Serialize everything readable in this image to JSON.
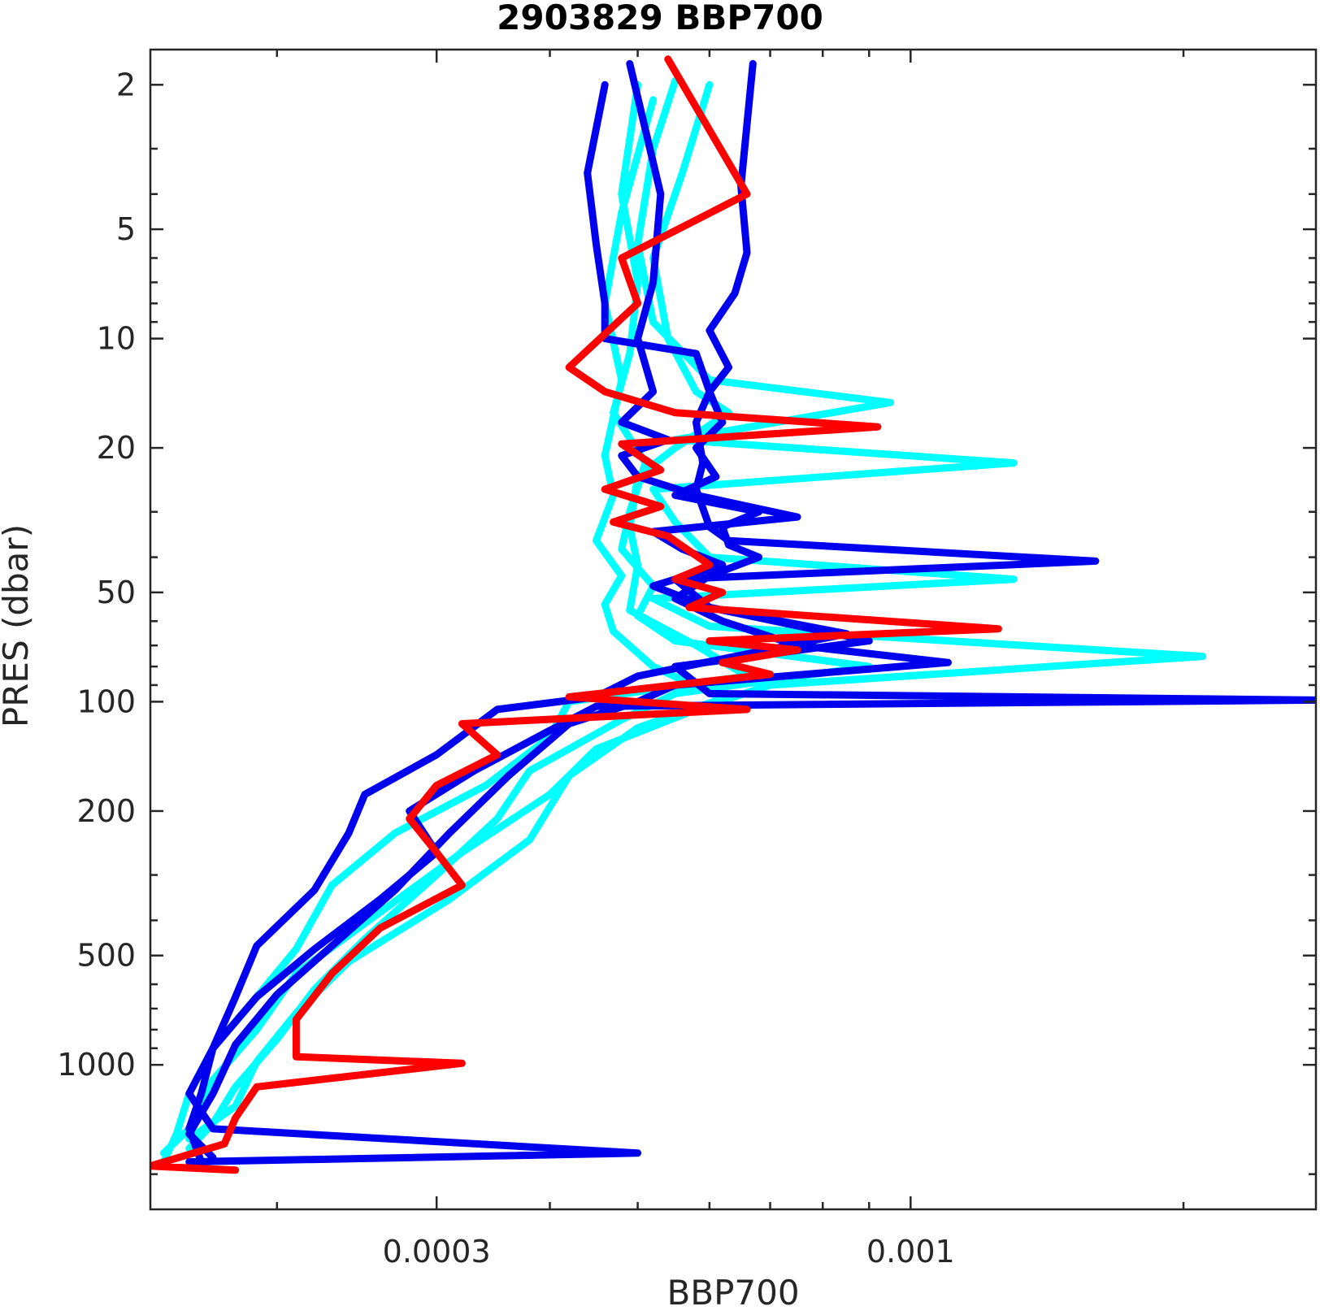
{
  "chart_data": {
    "type": "line",
    "title": "2903829 BBP700",
    "xlabel": "BBP700",
    "ylabel": "PRES (dbar)",
    "x_scale": "log",
    "y_scale": "log",
    "y_reversed": true,
    "xlim": [
      0.000145,
      0.0028
    ],
    "ylim": [
      2500,
      1.6
    ],
    "x_ticks": [
      {
        "value": 0.0003,
        "label": "0.0003"
      },
      {
        "value": 0.001,
        "label": "0.001"
      }
    ],
    "x_minor_ticks": [
      0.0002,
      0.0004,
      0.0005,
      0.0006,
      0.0007,
      0.0008,
      0.0009,
      0.002
    ],
    "y_ticks": [
      {
        "value": 2,
        "label": "2"
      },
      {
        "value": 5,
        "label": "5"
      },
      {
        "value": 10,
        "label": "10"
      },
      {
        "value": 20,
        "label": "20"
      },
      {
        "value": 50,
        "label": "50"
      },
      {
        "value": 100,
        "label": "100"
      },
      {
        "value": 200,
        "label": "200"
      },
      {
        "value": 500,
        "label": "500"
      },
      {
        "value": 1000,
        "label": "1000"
      }
    ],
    "y_minor_ticks": [
      3,
      4,
      6,
      7,
      8,
      9,
      30,
      40,
      60,
      70,
      80,
      90,
      300,
      400,
      600,
      700,
      800,
      900,
      2000
    ],
    "colors": {
      "older": "#00FFFF",
      "mid": "#0000EE",
      "latest": "#FF0000"
    },
    "series": [
      {
        "color": "#00FFFF",
        "points": [
          [
            0.0006,
            2.0
          ],
          [
            0.00056,
            3.5
          ],
          [
            0.00052,
            6
          ],
          [
            0.00054,
            10
          ],
          [
            0.00058,
            14
          ],
          [
            0.00063,
            16
          ],
          [
            0.00055,
            20
          ],
          [
            0.0005,
            24
          ],
          [
            0.00049,
            33
          ],
          [
            0.0005,
            42
          ],
          [
            0.00049,
            56
          ],
          [
            0.00058,
            70
          ],
          [
            0.00066,
            85
          ],
          [
            0.00042,
            100
          ],
          [
            0.0004,
            125
          ],
          [
            0.00034,
            170
          ],
          [
            0.00027,
            230
          ],
          [
            0.00023,
            320
          ],
          [
            0.00021,
            480
          ],
          [
            0.00019,
            650
          ],
          [
            0.00017,
            900
          ],
          [
            0.00016,
            1200
          ],
          [
            0.000155,
            1550
          ],
          [
            0.00015,
            1850
          ]
        ]
      },
      {
        "color": "#00FFFF",
        "points": [
          [
            0.00055,
            1.95
          ],
          [
            0.00052,
            3.0
          ],
          [
            0.0005,
            5.5
          ],
          [
            0.00052,
            9
          ],
          [
            0.0006,
            13
          ],
          [
            0.00095,
            15
          ],
          [
            0.00055,
            19
          ],
          [
            0.0013,
            22
          ],
          [
            0.00052,
            26
          ],
          [
            0.00055,
            32
          ],
          [
            0.0006,
            40
          ],
          [
            0.0013,
            46
          ],
          [
            0.00052,
            52
          ],
          [
            0.0006,
            62
          ],
          [
            0.0021,
            75
          ],
          [
            0.0007,
            90
          ],
          [
            0.00058,
            105
          ],
          [
            0.00045,
            135
          ],
          [
            0.0004,
            180
          ],
          [
            0.00032,
            260
          ],
          [
            0.00026,
            380
          ],
          [
            0.00021,
            560
          ],
          [
            0.00019,
            800
          ],
          [
            0.00017,
            1100
          ],
          [
            0.00016,
            1500
          ],
          [
            0.00015,
            1750
          ]
        ]
      },
      {
        "color": "#00FFFF",
        "points": [
          [
            0.0005,
            2.0
          ],
          [
            0.00048,
            4.0
          ],
          [
            0.0005,
            7
          ],
          [
            0.00049,
            11
          ],
          [
            0.00047,
            16
          ],
          [
            0.00051,
            22
          ],
          [
            0.00049,
            30
          ],
          [
            0.00048,
            38
          ],
          [
            0.00052,
            48
          ],
          [
            0.0005,
            58
          ],
          [
            0.00055,
            68
          ],
          [
            0.0009,
            80
          ],
          [
            0.00055,
            95
          ],
          [
            0.00048,
            112
          ],
          [
            0.00038,
            155
          ],
          [
            0.00035,
            210
          ],
          [
            0.0003,
            300
          ],
          [
            0.00025,
            450
          ],
          [
            0.00022,
            620
          ],
          [
            0.0002,
            850
          ],
          [
            0.00018,
            1150
          ],
          [
            0.00017,
            1450
          ],
          [
            0.00016,
            1700
          ]
        ]
      },
      {
        "color": "#00FFFF",
        "points": [
          [
            0.00052,
            2.2
          ],
          [
            0.00048,
            4.5
          ],
          [
            0.00046,
            8
          ],
          [
            0.00048,
            13
          ],
          [
            0.00046,
            21
          ],
          [
            0.00047,
            27
          ],
          [
            0.00045,
            36
          ],
          [
            0.00048,
            45
          ],
          [
            0.00046,
            54
          ],
          [
            0.00047,
            64
          ],
          [
            0.00052,
            80
          ],
          [
            0.00062,
            98
          ],
          [
            0.0005,
            118
          ],
          [
            0.00042,
            160
          ],
          [
            0.00038,
            240
          ],
          [
            0.00031,
            350
          ],
          [
            0.00024,
            520
          ],
          [
            0.00021,
            720
          ],
          [
            0.00019,
            980
          ],
          [
            0.00018,
            1300
          ],
          [
            0.00016,
            1600
          ]
        ]
      },
      {
        "color": "#0000EE",
        "points": [
          [
            0.00049,
            1.75
          ],
          [
            0.00053,
            4.0
          ],
          [
            0.00052,
            7
          ],
          [
            0.0005,
            10
          ],
          [
            0.00052,
            14
          ],
          [
            0.00048,
            17
          ],
          [
            0.00054,
            19
          ],
          [
            0.00048,
            21
          ],
          [
            0.0005,
            24
          ],
          [
            0.00058,
            27
          ],
          [
            0.00075,
            31
          ],
          [
            0.00052,
            34
          ],
          [
            0.00056,
            38
          ],
          [
            0.00062,
            42
          ],
          [
            0.00052,
            48
          ],
          [
            0.0006,
            55
          ],
          [
            0.0009,
            68
          ],
          [
            0.00055,
            80
          ],
          [
            0.0006,
            95
          ],
          [
            0.0028,
            99
          ],
          [
            0.00045,
            103
          ],
          [
            0.0004,
            120
          ],
          [
            0.00033,
            155
          ],
          [
            0.00028,
            200
          ],
          [
            0.0003,
            260
          ],
          [
            0.00026,
            350
          ],
          [
            0.00022,
            480
          ],
          [
            0.00019,
            650
          ],
          [
            0.00017,
            900
          ],
          [
            0.000165,
            1200
          ],
          [
            0.00016,
            1500
          ],
          [
            0.000165,
            1850
          ]
        ]
      },
      {
        "color": "#0000EE",
        "points": [
          [
            0.00067,
            1.75
          ],
          [
            0.00065,
            3.8
          ],
          [
            0.00066,
            5.8
          ],
          [
            0.00064,
            7.5
          ],
          [
            0.0006,
            9.5
          ],
          [
            0.00063,
            12
          ],
          [
            0.0006,
            14
          ],
          [
            0.00062,
            17
          ],
          [
            0.00058,
            20
          ],
          [
            0.00061,
            24
          ],
          [
            0.00055,
            27
          ],
          [
            0.00068,
            30
          ],
          [
            0.00062,
            33
          ],
          [
            0.00063,
            37
          ],
          [
            0.00068,
            40
          ],
          [
            0.0006,
            45
          ],
          [
            0.00055,
            52
          ],
          [
            0.00062,
            60
          ],
          [
            0.00075,
            70
          ],
          [
            0.0011,
            78
          ],
          [
            0.00055,
            90
          ],
          [
            0.0005,
            100
          ],
          [
            0.00042,
            115
          ],
          [
            0.00036,
            160
          ],
          [
            0.00031,
            230
          ],
          [
            0.00027,
            330
          ],
          [
            0.00023,
            470
          ],
          [
            0.0002,
            640
          ],
          [
            0.00018,
            880
          ],
          [
            0.00017,
            1200
          ],
          [
            0.00016,
            1550
          ],
          [
            0.00017,
            1800
          ]
        ]
      },
      {
        "color": "#0000EE",
        "points": [
          [
            0.00046,
            2.0
          ],
          [
            0.00044,
            3.5
          ],
          [
            0.00045,
            5.5
          ],
          [
            0.00046,
            8
          ],
          [
            0.00046,
            10
          ],
          [
            0.00058,
            11
          ],
          [
            0.0006,
            14
          ],
          [
            0.00058,
            17
          ],
          [
            0.00059,
            22
          ],
          [
            0.00058,
            26
          ],
          [
            0.0006,
            33
          ],
          [
            0.00063,
            36
          ],
          [
            0.0016,
            41
          ],
          [
            0.00055,
            46
          ],
          [
            0.0006,
            55
          ],
          [
            0.00085,
            65
          ],
          [
            0.0005,
            85
          ],
          [
            0.00045,
            97
          ],
          [
            0.00035,
            105
          ],
          [
            0.0003,
            140
          ],
          [
            0.00025,
            180
          ],
          [
            0.00024,
            230
          ],
          [
            0.00022,
            330
          ],
          [
            0.00019,
            470
          ],
          [
            0.00018,
            650
          ],
          [
            0.00017,
            900
          ],
          [
            0.00016,
            1200
          ],
          [
            0.00017,
            1500
          ],
          [
            0.0005,
            1750
          ],
          [
            0.00016,
            1850
          ]
        ]
      },
      {
        "color": "#FF0000",
        "points": [
          [
            0.00054,
            1.7
          ],
          [
            0.00066,
            4.0
          ],
          [
            0.00048,
            6.0
          ],
          [
            0.0005,
            8.0
          ],
          [
            0.00042,
            12
          ],
          [
            0.00046,
            14
          ],
          [
            0.00055,
            16
          ],
          [
            0.00092,
            17.5
          ],
          [
            0.00048,
            19.5
          ],
          [
            0.00053,
            23
          ],
          [
            0.00046,
            26
          ],
          [
            0.00053,
            29
          ],
          [
            0.00047,
            32
          ],
          [
            0.00054,
            35
          ],
          [
            0.0006,
            42
          ],
          [
            0.00055,
            46
          ],
          [
            0.00062,
            50
          ],
          [
            0.00057,
            55
          ],
          [
            0.00125,
            63
          ],
          [
            0.0006,
            68
          ],
          [
            0.00075,
            72
          ],
          [
            0.00062,
            78
          ],
          [
            0.0007,
            84
          ],
          [
            0.00042,
            97
          ],
          [
            0.00066,
            105
          ],
          [
            0.00032,
            115
          ],
          [
            0.00035,
            140
          ],
          [
            0.0003,
            170
          ],
          [
            0.00028,
            210
          ],
          [
            0.0003,
            260
          ],
          [
            0.00032,
            320
          ],
          [
            0.00026,
            420
          ],
          [
            0.00023,
            560
          ],
          [
            0.00021,
            750
          ],
          [
            0.00021,
            950
          ],
          [
            0.00032,
            990
          ],
          [
            0.00019,
            1150
          ],
          [
            0.00018,
            1400
          ],
          [
            0.000175,
            1650
          ],
          [
            0.000145,
            1900
          ],
          [
            0.00018,
            1950
          ]
        ]
      }
    ]
  }
}
